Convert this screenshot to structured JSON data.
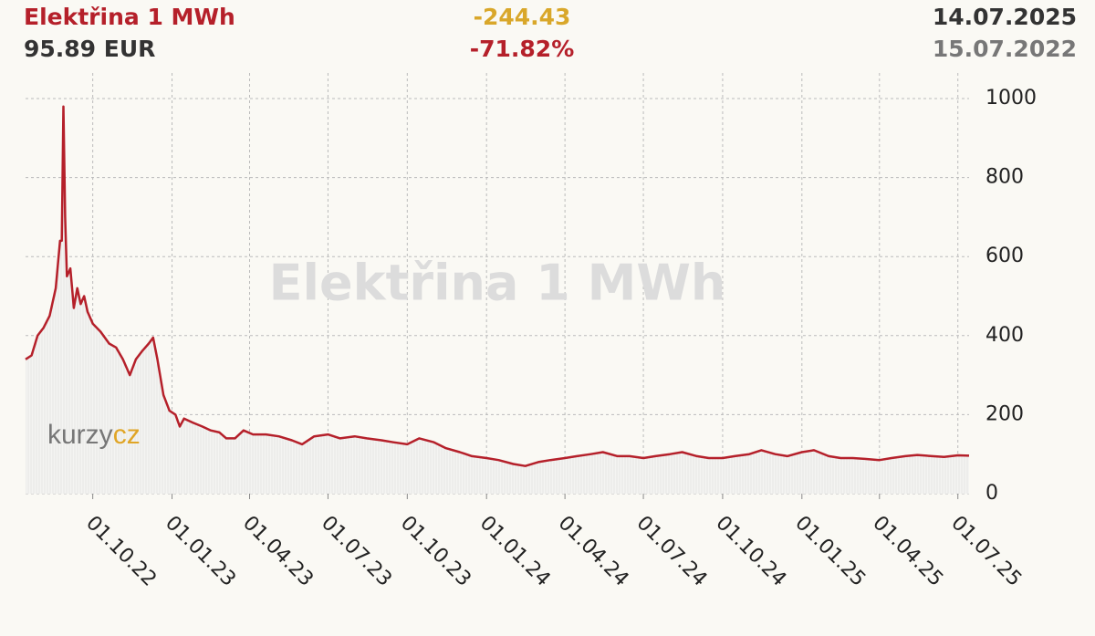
{
  "chart_data": {
    "type": "line",
    "title": "Elektřina 1 MWh",
    "current_value": "95.89 EUR",
    "change": "-244.43",
    "change_percent": "-71.82%",
    "end_date": "14.07.2025",
    "start_date": "15.07.2022",
    "logo": {
      "part1": "kurzy",
      "part2": "cz"
    },
    "grid": true,
    "x": [
      "15.07.22",
      "22.07.22",
      "29.07.22",
      "05.08.22",
      "12.08.22",
      "19.08.22",
      "24.08.22",
      "26.08.22",
      "28.08.22",
      "30.08.22",
      "01.09.22",
      "05.09.22",
      "09.09.22",
      "13.09.22",
      "17.09.22",
      "21.09.22",
      "25.09.22",
      "01.10.22",
      "10.10.22",
      "20.10.22",
      "28.10.22",
      "05.11.22",
      "13.11.22",
      "20.11.22",
      "27.11.22",
      "05.12.22",
      "10.12.22",
      "15.12.22",
      "22.12.22",
      "29.12.22",
      "05.01.23",
      "10.01.23",
      "15.01.23",
      "25.01.23",
      "05.02.23",
      "15.02.23",
      "25.02.23",
      "05.03.23",
      "15.03.23",
      "25.03.23",
      "05.04.23",
      "20.04.23",
      "05.05.23",
      "20.05.23",
      "01.06.23",
      "15.06.23",
      "01.07.23",
      "15.07.23",
      "01.08.23",
      "15.08.23",
      "01.09.23",
      "15.09.23",
      "01.10.23",
      "15.10.23",
      "01.11.23",
      "15.11.23",
      "01.12.23",
      "15.12.23",
      "01.01.24",
      "15.01.24",
      "01.02.24",
      "15.02.24",
      "01.03.24",
      "15.03.24",
      "01.04.24",
      "15.04.24",
      "01.05.24",
      "15.05.24",
      "01.06.24",
      "15.06.24",
      "01.07.24",
      "15.07.24",
      "01.08.24",
      "15.08.24",
      "01.09.24",
      "15.09.24",
      "01.10.24",
      "15.10.24",
      "01.11.24",
      "15.11.24",
      "01.12.24",
      "15.12.24",
      "01.01.25",
      "15.01.25",
      "01.02.25",
      "15.02.25",
      "01.03.25",
      "15.03.25",
      "01.04.25",
      "15.04.25",
      "01.05.25",
      "15.05.25",
      "01.06.25",
      "15.06.25",
      "01.07.25",
      "14.07.25"
    ],
    "series": [
      {
        "name": "Elektřina 1 MWh",
        "color": "#b5202a",
        "values": [
          340,
          350,
          400,
          420,
          450,
          520,
          640,
          640,
          980,
          700,
          550,
          570,
          470,
          520,
          480,
          500,
          460,
          430,
          410,
          380,
          370,
          340,
          300,
          340,
          360,
          380,
          395,
          340,
          250,
          210,
          200,
          170,
          190,
          180,
          170,
          160,
          155,
          140,
          140,
          160,
          150,
          150,
          145,
          135,
          125,
          145,
          150,
          140,
          145,
          140,
          135,
          130,
          125,
          140,
          130,
          115,
          105,
          95,
          90,
          85,
          75,
          70,
          80,
          85,
          90,
          95,
          100,
          105,
          95,
          95,
          90,
          95,
          100,
          105,
          95,
          90,
          90,
          95,
          100,
          110,
          100,
          95,
          105,
          110,
          95,
          90,
          90,
          88,
          85,
          90,
          95,
          98,
          95,
          93,
          97,
          96
        ]
      }
    ],
    "xlim": [
      "15.07.22",
      "14.07.25"
    ],
    "xticks": [
      "01.10.22",
      "01.01.23",
      "01.04.23",
      "01.07.23",
      "01.10.23",
      "01.01.24",
      "01.04.24",
      "01.07.24",
      "01.10.24",
      "01.01.25",
      "01.04.25",
      "01.07.25"
    ],
    "ylim": [
      0,
      1000
    ],
    "yticks": [
      0,
      200,
      400,
      600,
      800,
      1000
    ]
  }
}
